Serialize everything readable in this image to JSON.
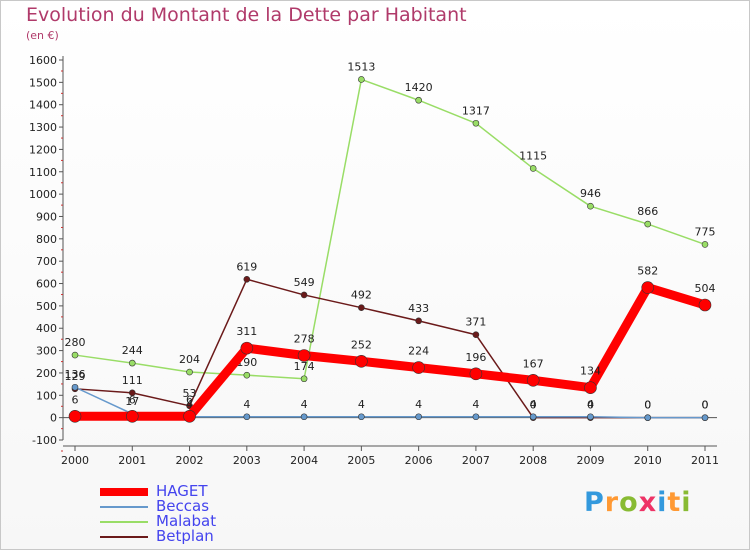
{
  "title": "Evolution du Montant de la Dette par Habitant",
  "subtitle": "(en €)",
  "logo": "Proxiti",
  "chart_data": {
    "type": "line",
    "title": "Evolution du Montant de la Dette par Habitant",
    "ylabel": "(en €)",
    "x": [
      2000,
      2001,
      2002,
      2003,
      2004,
      2005,
      2006,
      2007,
      2008,
      2009,
      2010,
      2011
    ],
    "ylim": [
      -100,
      1600
    ],
    "yticks": [
      -100,
      0,
      100,
      200,
      300,
      400,
      500,
      600,
      700,
      800,
      900,
      1000,
      1100,
      1200,
      1300,
      1400,
      1500,
      1600
    ],
    "grid": false,
    "legend": "bottom-left",
    "series": [
      {
        "name": "HAGET",
        "color": "#ff0000",
        "values": [
          6,
          6,
          6,
          311,
          278,
          252,
          224,
          196,
          167,
          134,
          582,
          504
        ]
      },
      {
        "name": "Beccas",
        "color": "#6699cc",
        "values": [
          136,
          17,
          4,
          4,
          4,
          4,
          4,
          4,
          4,
          4,
          0,
          0
        ]
      },
      {
        "name": "Malabat",
        "color": "#99dd66",
        "values": [
          280,
          244,
          204,
          190,
          174,
          1513,
          1420,
          1317,
          1115,
          946,
          866,
          775
        ]
      },
      {
        "name": "Betplan",
        "color": "#6b1a1a",
        "values": [
          129,
          111,
          53,
          619,
          549,
          492,
          433,
          371,
          0,
          0,
          0,
          0
        ]
      }
    ]
  }
}
